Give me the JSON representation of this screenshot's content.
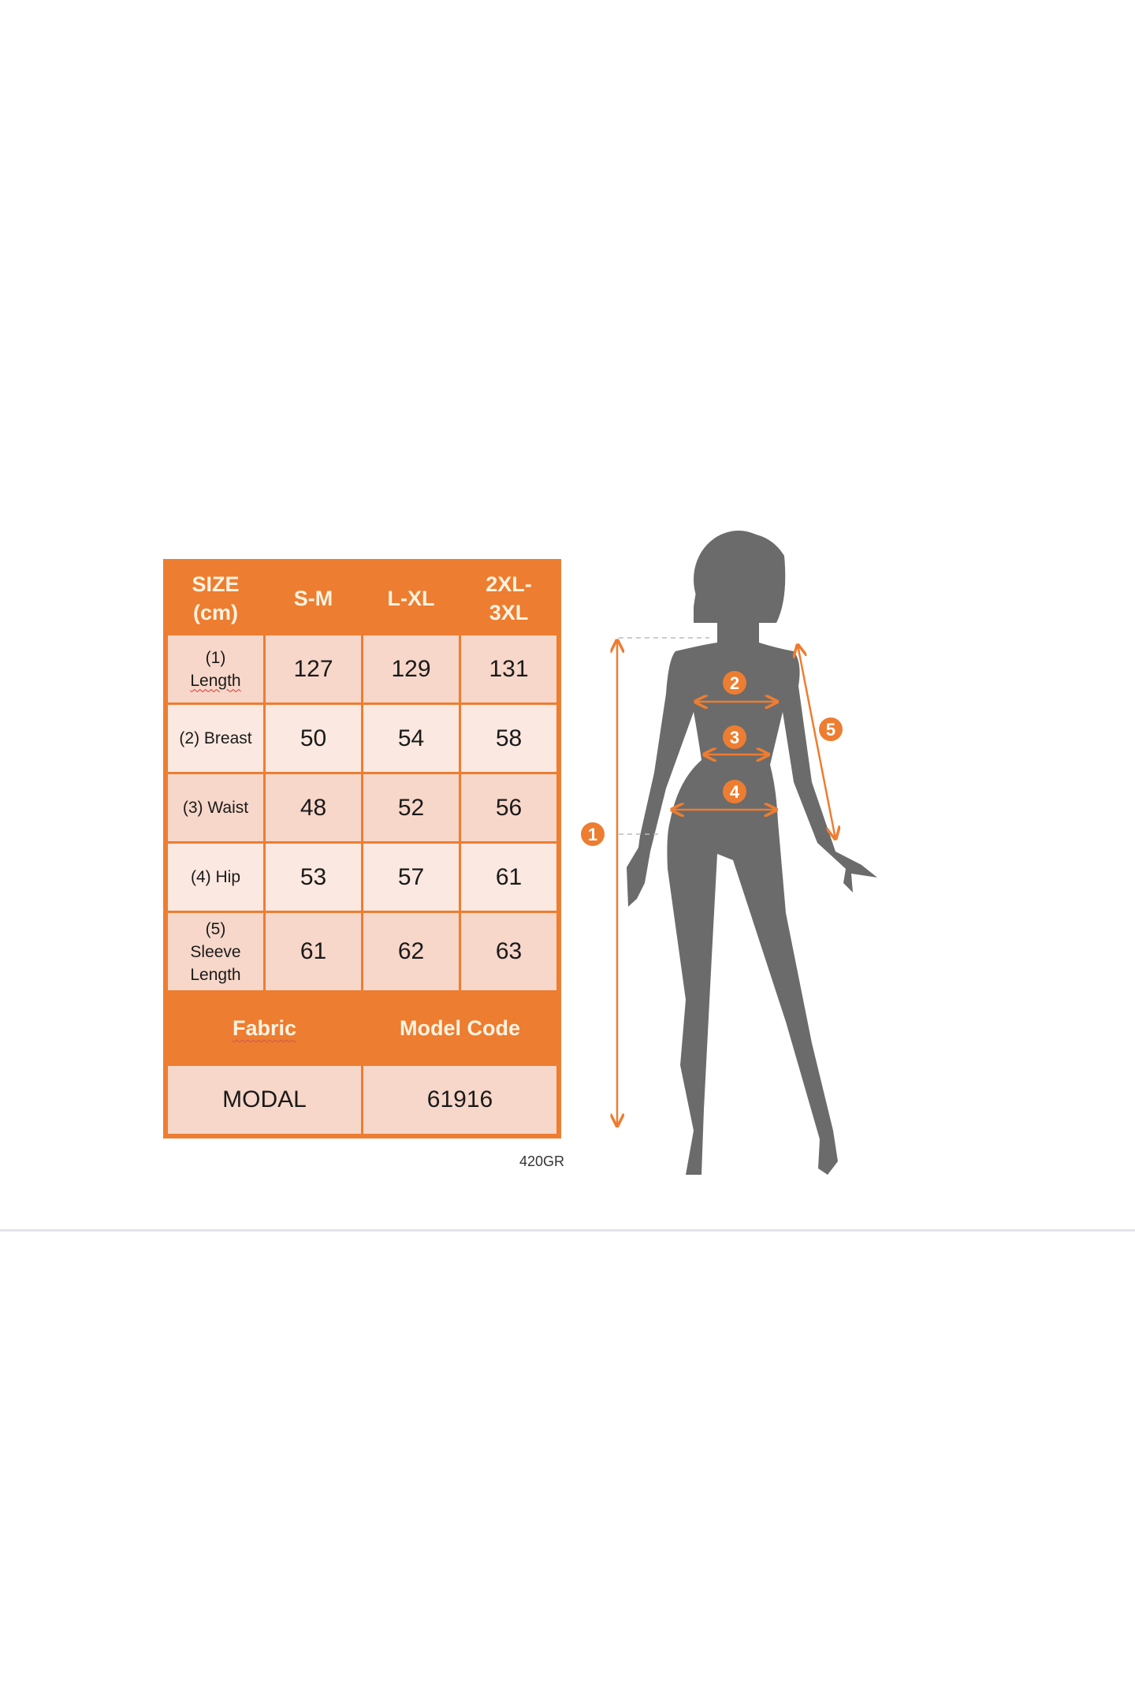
{
  "size_chart": {
    "header": {
      "size_label_line1": "SIZE",
      "size_label_line2": "(cm)",
      "sizes": [
        "S-M",
        "L-XL",
        "2XL-",
        "3XL"
      ]
    },
    "rows": [
      {
        "label_line1": "(1)",
        "label_line2": "Length",
        "values": [
          "127",
          "129",
          "131"
        ]
      },
      {
        "label_line1": "(2) Breast",
        "values": [
          "50",
          "54",
          "58"
        ]
      },
      {
        "label_line1": "(3) Waist",
        "values": [
          "48",
          "52",
          "56"
        ]
      },
      {
        "label_line1": "(4) Hip",
        "values": [
          "53",
          "57",
          "61"
        ]
      },
      {
        "label_line1": "(5)",
        "label_line2": "Sleeve",
        "label_line3": "Length",
        "values": [
          "61",
          "62",
          "63"
        ]
      }
    ],
    "fabric_header": "Fabric",
    "model_code_header": "Model Code",
    "fabric_value": "MODAL",
    "model_code_value": "61916",
    "footer_code": "420GR"
  },
  "figure": {
    "markers": [
      "1",
      "2",
      "3",
      "4",
      "5"
    ],
    "accent_color": "#ED7D31",
    "silhouette_color": "#6B6B6B"
  }
}
